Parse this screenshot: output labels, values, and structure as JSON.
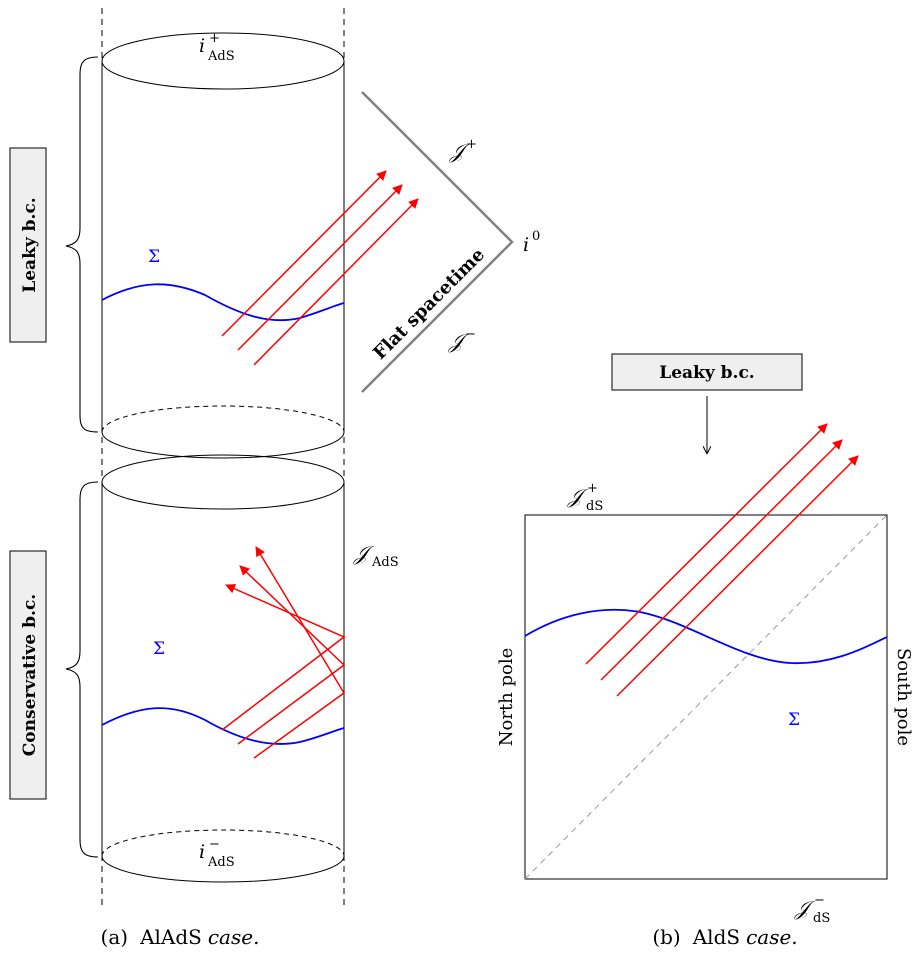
{
  "left_panel": {
    "top_label": "i",
    "top_sup": "+",
    "top_sub": "AdS",
    "bottom_label": "i",
    "bottom_sup": "−",
    "bottom_sub": "AdS",
    "boundary_label": "𝒥",
    "boundary_sub": "AdS",
    "sigma_upper": "Σ",
    "sigma_lower": "Σ",
    "leaky_box": "Leaky b.c.",
    "conservative_box": "Conservative b.c.",
    "scri_plus": "𝒥",
    "scri_plus_sup": "+",
    "scri_minus": "𝒥",
    "scri_minus_sup": "−",
    "spatial_infinity": "i",
    "spatial_infinity_sup": "0",
    "flat_label": "Flat spacetime",
    "caption_tag": "(a)",
    "caption_name": "AlAdS",
    "caption_word": "case."
  },
  "right_panel": {
    "leaky_box": "Leaky b.c.",
    "scri_plus": "𝒥",
    "scri_plus_sup": "+",
    "scri_plus_sub": "dS",
    "scri_minus": "𝒥",
    "scri_minus_sup": "−",
    "scri_minus_sub": "dS",
    "north_pole": "North pole",
    "south_pole": "South pole",
    "sigma": "Σ",
    "caption_tag": "(b)",
    "caption_name": "AldS",
    "caption_word": "case."
  },
  "colors": {
    "ray": "#ff0000",
    "sigma": "#0000ff",
    "flat_boundary": "#808080",
    "diagonal": "#999999"
  }
}
